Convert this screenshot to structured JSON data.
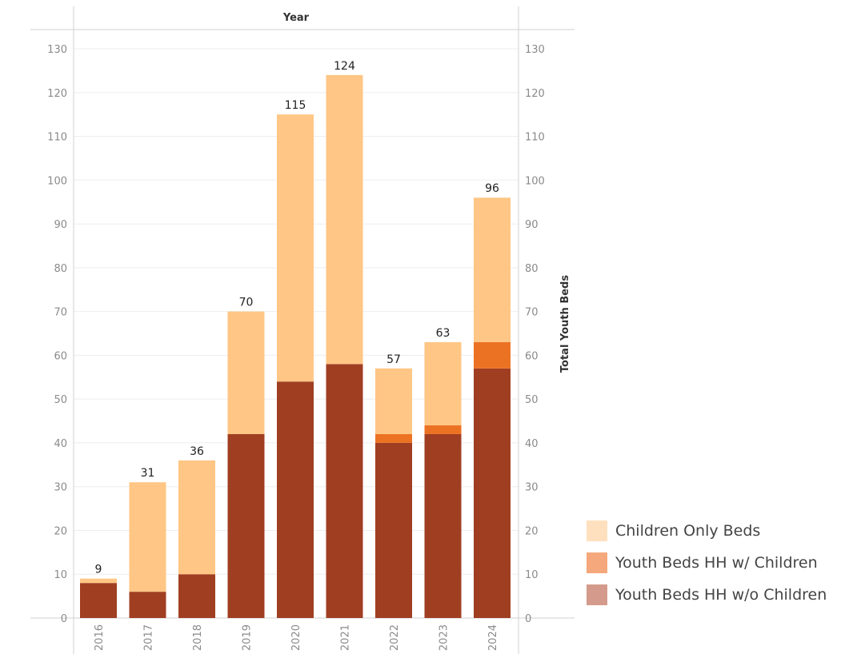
{
  "colors": {
    "children_only": "#FFC685",
    "hh_with_children": "#EC7223",
    "hh_without_children": "#A03E22",
    "legend_children_only": "#FFE0BE",
    "legend_hh_with_children": "#F4A87B",
    "legend_hh_without_children": "#D49B8C",
    "grid": "#eeeeee",
    "axis": "#d0d0d0"
  },
  "chart_data": {
    "type": "bar",
    "stacked": true,
    "header": "Year",
    "ylabel_right": "Total Youth Beds",
    "categories": [
      "2016",
      "2017",
      "2018",
      "2019",
      "2020",
      "2021",
      "2022",
      "2023",
      "2024"
    ],
    "series": [
      {
        "name": "Youth Beds HH w/o Children",
        "values": [
          8,
          6,
          10,
          42,
          54,
          58,
          40,
          42,
          57
        ]
      },
      {
        "name": "Youth Beds HH w/ Children",
        "values": [
          0,
          0,
          0,
          0,
          0,
          0,
          2,
          2,
          6
        ]
      },
      {
        "name": "Children Only Beds",
        "values": [
          1,
          25,
          26,
          28,
          61,
          66,
          15,
          19,
          33
        ]
      }
    ],
    "totals": [
      9,
      31,
      36,
      70,
      115,
      124,
      57,
      63,
      96
    ],
    "yticks": [
      0,
      10,
      20,
      30,
      40,
      50,
      60,
      70,
      80,
      90,
      100,
      110,
      120,
      130
    ],
    "ylim": [
      0,
      130
    ],
    "grid": true,
    "legend_position": "bottom-right",
    "legend": [
      {
        "label": "Children Only Beds"
      },
      {
        "label": "Youth Beds HH w/ Children"
      },
      {
        "label": "Youth Beds HH w/o Children"
      }
    ]
  }
}
